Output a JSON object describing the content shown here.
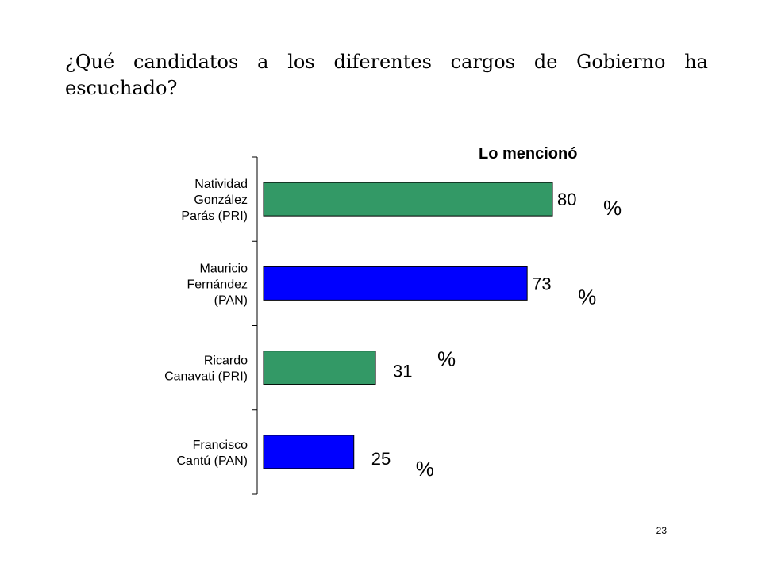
{
  "question": "¿Qué candidatos a los diferentes cargos de Gobierno ha escuchado?",
  "page_number": "23",
  "colors": {
    "PRI": "#339966",
    "PAN": "#0000ff"
  },
  "chart_data": {
    "type": "bar",
    "orientation": "horizontal",
    "title": "Lo mencionó",
    "categories": [
      [
        "Natividad",
        "González",
        "Parás (PRI)"
      ],
      [
        "Mauricio",
        "Fernández",
        "(PAN)"
      ],
      [
        "Ricardo",
        "Canavati (PRI)"
      ],
      [
        "Francisco",
        "Cantú (PAN)"
      ]
    ],
    "values": [
      80,
      73,
      31,
      25
    ],
    "value_labels": [
      "80",
      "73",
      "31",
      "25"
    ],
    "unit_label": "%",
    "parties": [
      "PRI",
      "PAN",
      "PRI",
      "PAN"
    ],
    "xlim": [
      0,
      100
    ],
    "grid": false,
    "legend": "none"
  }
}
